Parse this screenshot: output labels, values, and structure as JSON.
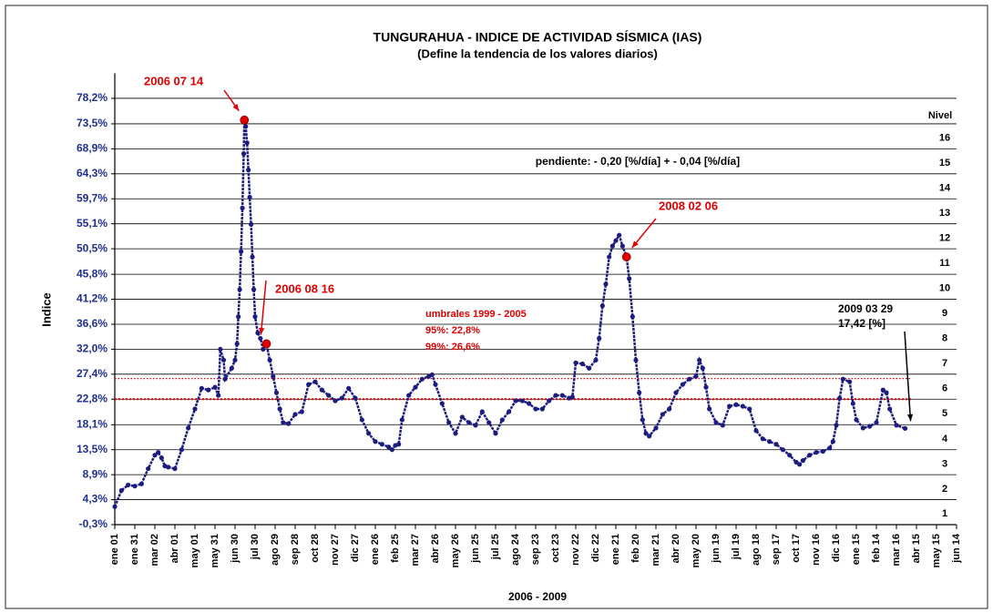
{
  "chart_data": {
    "type": "scatter",
    "title": "TUNGURAHUA - INDICE DE ACTIVIDAD SÍSMICA (IAS)",
    "subtitle": "(Define la tendencia de los valores diarios)",
    "y_label": "Indice",
    "x_label": "2006 - 2009",
    "level_title": "Nivel",
    "levels": [
      "1",
      "2",
      "3",
      "4",
      "5",
      "6",
      "7",
      "8",
      "9",
      "10",
      "11",
      "12",
      "13",
      "14",
      "15",
      "16"
    ],
    "slope_text": "pendiente:   - 0,20 [%/día]  + - 0,04 [%/día]",
    "thresholds_title": "umbrales 1999 - 2005",
    "thresholds": [
      {
        "label": "95%:   22,8%",
        "value": 22.8,
        "color": "#e00000"
      },
      {
        "label": "99%:   26,6%",
        "value": 26.6,
        "color": "#e00000"
      }
    ],
    "annotations": [
      {
        "label": "2006 07 14",
        "x": 194,
        "value": 74.2
      },
      {
        "label": "2006 08 16",
        "x": 227,
        "value": 33
      },
      {
        "label": "2008 02 06",
        "x": 766,
        "value": 49
      },
      {
        "label": "2009 03 29",
        "sublabel": "17,42 [%]",
        "x": 1183,
        "value": 17.42
      }
    ],
    "series": [
      {
        "name": "IAS",
        "color": "#1c1c80",
        "x": [
          0,
          10,
          20,
          30,
          40,
          50,
          60,
          65,
          70,
          75,
          80,
          90,
          100,
          110,
          120,
          130,
          140,
          150,
          155,
          158,
          163,
          165,
          175,
          180,
          183,
          185,
          187,
          189,
          191,
          193,
          194,
          196,
          198,
          200,
          202,
          204,
          206,
          208,
          210,
          214,
          218,
          222,
          227,
          232,
          237,
          242,
          247,
          252,
          260,
          270,
          280,
          290,
          300,
          310,
          320,
          330,
          340,
          350,
          360,
          370,
          380,
          390,
          400,
          410,
          415,
          420,
          425,
          430,
          440,
          450,
          460,
          470,
          475,
          480,
          490,
          500,
          510,
          520,
          530,
          540,
          550,
          560,
          570,
          580,
          590,
          600,
          610,
          620,
          630,
          640,
          650,
          660,
          670,
          680,
          685,
          690,
          700,
          710,
          720,
          725,
          730,
          735,
          740,
          745,
          750,
          755,
          760,
          766,
          770,
          775,
          780,
          785,
          790,
          795,
          800,
          810,
          820,
          830,
          840,
          850,
          860,
          870,
          875,
          880,
          885,
          890,
          900,
          910,
          920,
          930,
          940,
          950,
          960,
          970,
          980,
          990,
          1000,
          1010,
          1020,
          1025,
          1030,
          1040,
          1050,
          1060,
          1070,
          1075,
          1080,
          1085,
          1090,
          1100,
          1105,
          1110,
          1120,
          1130,
          1140,
          1150,
          1155,
          1160,
          1170,
          1183
        ],
        "values": [
          3,
          6,
          7,
          6.8,
          7.2,
          10,
          12.5,
          13,
          12,
          10.5,
          10.3,
          10,
          13.5,
          17.5,
          21,
          24.8,
          24.5,
          25,
          23.5,
          32,
          30,
          26.5,
          28.5,
          30,
          33,
          38,
          43,
          50,
          58,
          68,
          74.2,
          73,
          70,
          65,
          60,
          55,
          49,
          43,
          38,
          35,
          34,
          32,
          33,
          30,
          27,
          24,
          21,
          18.5,
          18.3,
          20,
          20.5,
          25.5,
          26,
          24.5,
          23.5,
          22.5,
          23,
          24.8,
          23,
          19,
          16.5,
          15,
          14.5,
          14,
          13.5,
          14.3,
          14.5,
          19,
          23.5,
          25,
          26.5,
          27,
          27.3,
          25.5,
          22,
          18.5,
          16.5,
          19.5,
          18.5,
          18,
          20.5,
          18.5,
          16.5,
          19,
          20.5,
          22.5,
          22.5,
          22,
          21,
          21,
          22.5,
          23.5,
          23.5,
          23,
          23.2,
          29.5,
          29.3,
          28.5,
          30,
          34,
          40,
          44,
          49,
          51,
          52,
          53,
          51,
          49,
          45,
          38,
          30,
          24,
          19,
          16.5,
          16,
          17.5,
          20,
          21,
          24,
          25.5,
          26.5,
          27,
          30,
          28.5,
          25,
          21,
          18.5,
          18,
          21.5,
          21.8,
          21.5,
          21,
          17,
          15.5,
          15,
          14.5,
          13.5,
          12.5,
          11.2,
          10.8,
          11.5,
          12.5,
          13,
          13.2,
          13.8,
          15,
          18,
          23,
          26.5,
          26,
          22,
          19,
          17.5,
          17.8,
          18.5,
          24.5,
          24,
          21,
          18,
          17.42
        ]
      }
    ],
    "xlim": [
      0,
      1260
    ],
    "xticks": [
      {
        "value": 0,
        "label": "ene 01"
      },
      {
        "value": 30,
        "label": "ene 31"
      },
      {
        "value": 60,
        "label": "mar 02"
      },
      {
        "value": 90,
        "label": "abr 01"
      },
      {
        "value": 120,
        "label": "may 01"
      },
      {
        "value": 150,
        "label": "may 31"
      },
      {
        "value": 180,
        "label": "jun 30"
      },
      {
        "value": 210,
        "label": "jul 30"
      },
      {
        "value": 240,
        "label": "ago 29"
      },
      {
        "value": 270,
        "label": "sep 28"
      },
      {
        "value": 300,
        "label": "oct 28"
      },
      {
        "value": 330,
        "label": "nov 27"
      },
      {
        "value": 360,
        "label": "dic 27"
      },
      {
        "value": 390,
        "label": "ene 26"
      },
      {
        "value": 420,
        "label": "feb 25"
      },
      {
        "value": 450,
        "label": "mar 27"
      },
      {
        "value": 480,
        "label": "abr 26"
      },
      {
        "value": 510,
        "label": "may 26"
      },
      {
        "value": 540,
        "label": "jun 25"
      },
      {
        "value": 570,
        "label": "jul 25"
      },
      {
        "value": 600,
        "label": "ago 24"
      },
      {
        "value": 630,
        "label": "sep 23"
      },
      {
        "value": 660,
        "label": "oct 23"
      },
      {
        "value": 690,
        "label": "nov 22"
      },
      {
        "value": 720,
        "label": "dic 22"
      },
      {
        "value": 750,
        "label": "ene 21"
      },
      {
        "value": 780,
        "label": "feb 20"
      },
      {
        "value": 810,
        "label": "mar 21"
      },
      {
        "value": 840,
        "label": "abr 20"
      },
      {
        "value": 870,
        "label": "may 20"
      },
      {
        "value": 900,
        "label": "jun 19"
      },
      {
        "value": 930,
        "label": "jul 19"
      },
      {
        "value": 960,
        "label": "ago 18"
      },
      {
        "value": 990,
        "label": "sep 17"
      },
      {
        "value": 1020,
        "label": "oct 17"
      },
      {
        "value": 1050,
        "label": "nov 16"
      },
      {
        "value": 1080,
        "label": "dic 16"
      },
      {
        "value": 1110,
        "label": "ene 15"
      },
      {
        "value": 1140,
        "label": "feb 14"
      },
      {
        "value": 1170,
        "label": "mar 16"
      },
      {
        "value": 1200,
        "label": "abr 15"
      },
      {
        "value": 1230,
        "label": "may 15"
      },
      {
        "value": 1260,
        "label": "jun 14"
      }
    ],
    "ylim": [
      -0.3,
      82.8
    ],
    "yticks": [
      {
        "value": -0.3,
        "label": "-0,3%"
      },
      {
        "value": 4.3,
        "label": "4,3%"
      },
      {
        "value": 8.9,
        "label": "8,9%"
      },
      {
        "value": 13.5,
        "label": "13,5%"
      },
      {
        "value": 18.1,
        "label": "18,1%"
      },
      {
        "value": 22.8,
        "label": "22,8%"
      },
      {
        "value": 27.4,
        "label": "27,4%"
      },
      {
        "value": 32,
        "label": "32,0%"
      },
      {
        "value": 36.6,
        "label": "36,6%"
      },
      {
        "value": 41.2,
        "label": "41,2%"
      },
      {
        "value": 45.8,
        "label": "45,8%"
      },
      {
        "value": 50.5,
        "label": "50,5%"
      },
      {
        "value": 55.1,
        "label": "55,1%"
      },
      {
        "value": 59.7,
        "label": "59,7%"
      },
      {
        "value": 64.3,
        "label": "64,3%"
      },
      {
        "value": 68.9,
        "label": "68,9%"
      },
      {
        "value": 73.5,
        "label": "73,5%"
      },
      {
        "value": 78.2,
        "label": "78,2%"
      }
    ],
    "grid": true,
    "highlight_color": "#e00000"
  }
}
